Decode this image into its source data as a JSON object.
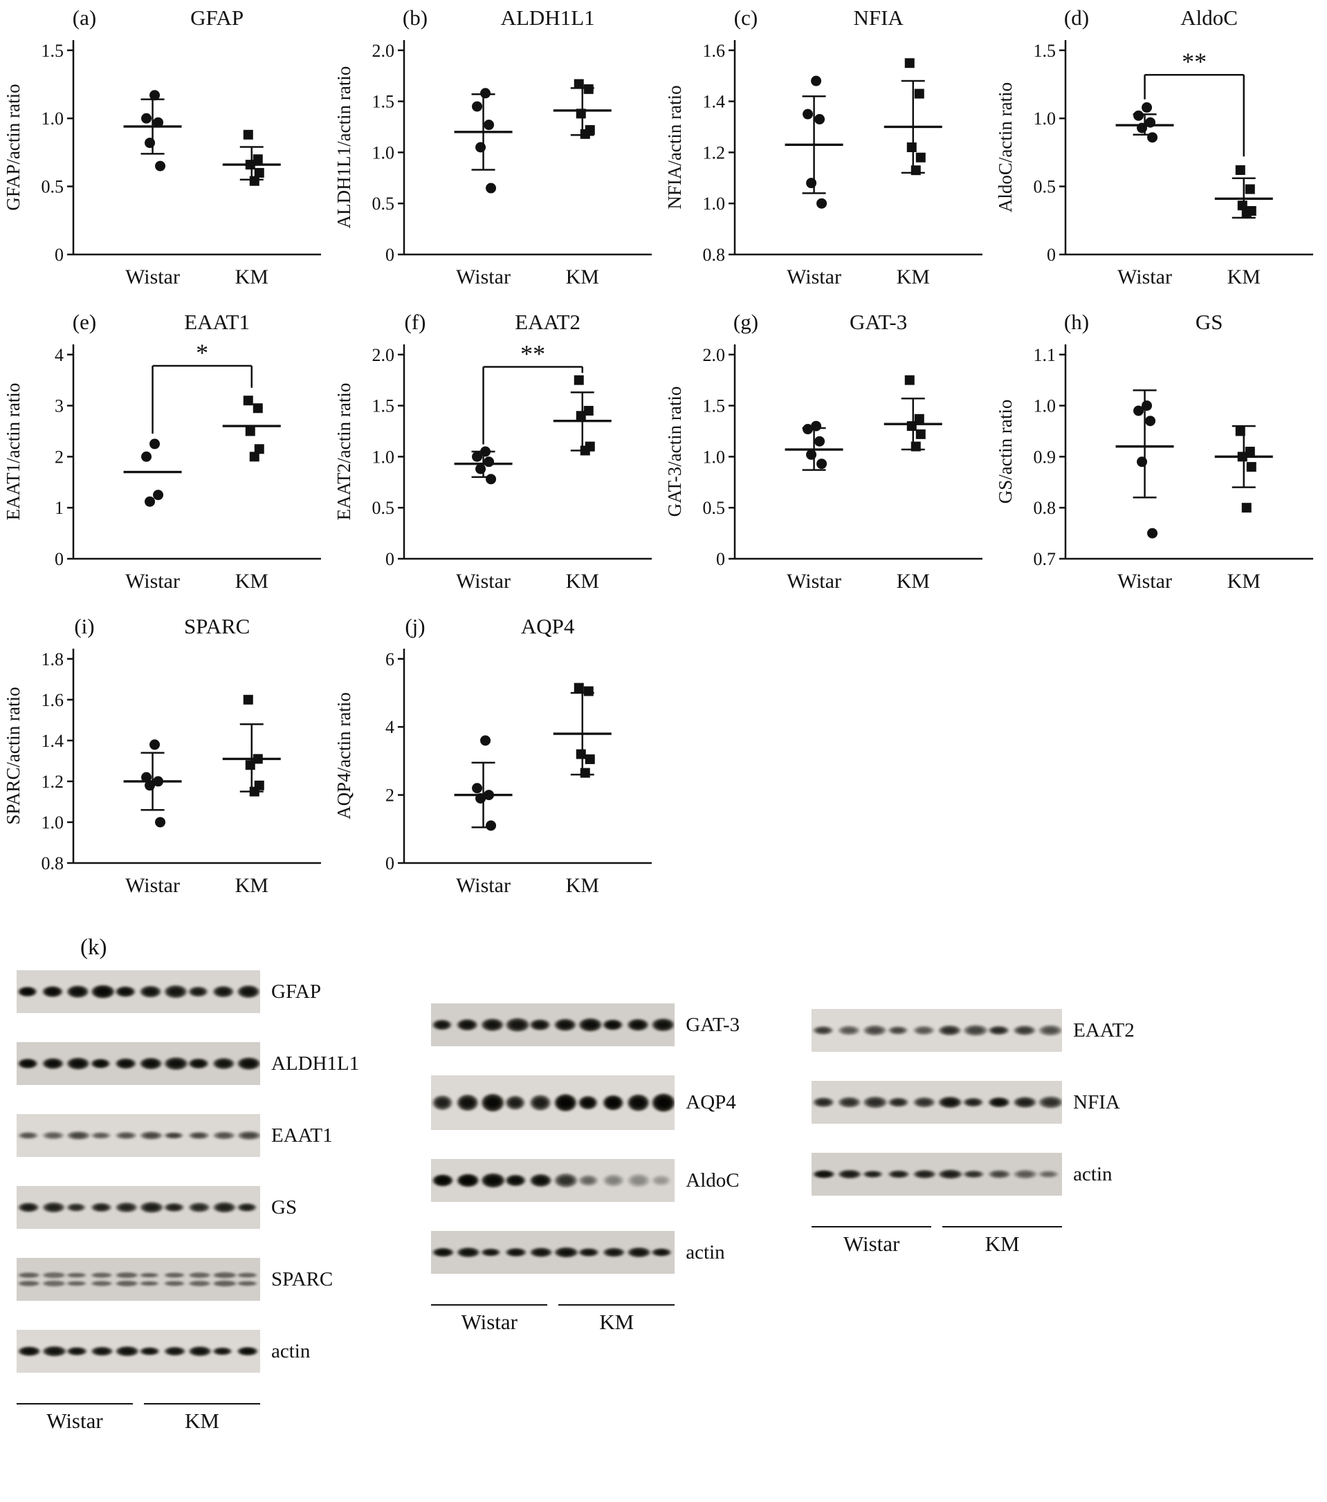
{
  "chart_data": [
    {
      "id": "a",
      "panel": "(a)",
      "title": "GFAP",
      "type": "scatter",
      "ylabel": "GFAP/actin ratio",
      "categories": [
        "Wistar",
        "KM"
      ],
      "ylim": [
        0,
        1.5
      ],
      "yticks": [
        0,
        0.5,
        1.0,
        1.5
      ],
      "ytick_labels": [
        "0",
        "0.5",
        "1.0",
        "1.5"
      ],
      "series": [
        {
          "name": "Wistar",
          "marker": "circle",
          "values": [
            1.17,
            1.0,
            0.97,
            0.82,
            0.65
          ],
          "mean": 0.94,
          "err": [
            0.74,
            1.14
          ]
        },
        {
          "name": "KM",
          "marker": "square",
          "values": [
            0.88,
            0.7,
            0.66,
            0.6,
            0.54
          ],
          "mean": 0.66,
          "err": [
            0.55,
            0.79
          ]
        }
      ],
      "significance": null
    },
    {
      "id": "b",
      "panel": "(b)",
      "title": "ALDH1L1",
      "type": "scatter",
      "ylabel": "ALDH1L1/actin ratio",
      "categories": [
        "Wistar",
        "KM"
      ],
      "ylim": [
        0,
        2.0
      ],
      "yticks": [
        0,
        0.5,
        1.0,
        1.5,
        2.0
      ],
      "ytick_labels": [
        "0",
        "0.5",
        "1.0",
        "1.5",
        "2.0"
      ],
      "series": [
        {
          "name": "Wistar",
          "marker": "circle",
          "values": [
            1.58,
            1.45,
            1.27,
            1.05,
            0.65
          ],
          "mean": 1.2,
          "err": [
            0.83,
            1.57
          ]
        },
        {
          "name": "KM",
          "marker": "square",
          "values": [
            1.67,
            1.62,
            1.38,
            1.22,
            1.18
          ],
          "mean": 1.41,
          "err": [
            1.17,
            1.63
          ]
        }
      ],
      "significance": null
    },
    {
      "id": "c",
      "panel": "(c)",
      "title": "NFIA",
      "type": "scatter",
      "ylabel": "NFIA/actin ratio",
      "categories": [
        "Wistar",
        "KM"
      ],
      "ylim": [
        0.8,
        1.6
      ],
      "yticks": [
        0.8,
        1.0,
        1.2,
        1.4,
        1.6
      ],
      "ytick_labels": [
        "0.8",
        "1.0",
        "1.2",
        "1.4",
        "1.6"
      ],
      "series": [
        {
          "name": "Wistar",
          "marker": "circle",
          "values": [
            1.48,
            1.35,
            1.33,
            1.08,
            1.0
          ],
          "mean": 1.23,
          "err": [
            1.04,
            1.42
          ]
        },
        {
          "name": "KM",
          "marker": "square",
          "values": [
            1.55,
            1.43,
            1.22,
            1.18,
            1.13
          ],
          "mean": 1.3,
          "err": [
            1.12,
            1.48
          ]
        }
      ],
      "significance": null
    },
    {
      "id": "d",
      "panel": "(d)",
      "title": "AldoC",
      "type": "scatter",
      "ylabel": "AldoC/actin ratio",
      "categories": [
        "Wistar",
        "KM"
      ],
      "ylim": [
        0,
        1.5
      ],
      "yticks": [
        0,
        0.5,
        1.0,
        1.5
      ],
      "ytick_labels": [
        "0",
        "0.5",
        "1.0",
        "1.5"
      ],
      "series": [
        {
          "name": "Wistar",
          "marker": "circle",
          "values": [
            1.08,
            1.02,
            0.97,
            0.93,
            0.86
          ],
          "mean": 0.95,
          "err": [
            0.88,
            1.03
          ]
        },
        {
          "name": "KM",
          "marker": "square",
          "values": [
            0.62,
            0.48,
            0.36,
            0.32,
            0.3
          ],
          "mean": 0.41,
          "err": [
            0.27,
            0.56
          ]
        }
      ],
      "significance": {
        "label": "**",
        "bar_y": 1.32,
        "left_drop_to": 1.14,
        "right_drop_to": 0.72
      }
    },
    {
      "id": "e",
      "panel": "(e)",
      "title": "EAAT1",
      "type": "scatter",
      "ylabel": "EAAT1/actin ratio",
      "categories": [
        "Wistar",
        "KM"
      ],
      "ylim": [
        0,
        4
      ],
      "yticks": [
        0,
        1,
        2,
        3,
        4
      ],
      "ytick_labels": [
        "0",
        "1",
        "2",
        "3",
        "4"
      ],
      "series": [
        {
          "name": "Wistar",
          "marker": "circle",
          "values": [
            2.25,
            2.0,
            1.25,
            1.12
          ],
          "mean": 1.7,
          "err": null
        },
        {
          "name": "KM",
          "marker": "square",
          "values": [
            3.1,
            2.95,
            2.5,
            2.15,
            2.0
          ],
          "mean": 2.6,
          "err": null
        }
      ],
      "significance": {
        "label": "*",
        "bar_y": 3.78,
        "left_drop_to": 2.45,
        "right_drop_to": 3.35
      }
    },
    {
      "id": "f",
      "panel": "(f)",
      "title": "EAAT2",
      "type": "scatter",
      "ylabel": "EAAT2/actin ratio",
      "categories": [
        "Wistar",
        "KM"
      ],
      "ylim": [
        0,
        2.0
      ],
      "yticks": [
        0,
        0.5,
        1.0,
        1.5,
        2.0
      ],
      "ytick_labels": [
        "0",
        "0.5",
        "1.0",
        "1.5",
        "2.0"
      ],
      "series": [
        {
          "name": "Wistar",
          "marker": "circle",
          "values": [
            1.05,
            1.0,
            0.95,
            0.88,
            0.78
          ],
          "mean": 0.93,
          "err": [
            0.8,
            1.05
          ]
        },
        {
          "name": "KM",
          "marker": "square",
          "values": [
            1.75,
            1.45,
            1.4,
            1.1,
            1.06
          ],
          "mean": 1.35,
          "err": [
            1.06,
            1.63
          ]
        }
      ],
      "significance": {
        "label": "**",
        "bar_y": 1.88,
        "left_drop_to": 1.12,
        "right_drop_to": 1.82
      }
    },
    {
      "id": "g",
      "panel": "(g)",
      "title": "GAT-3",
      "type": "scatter",
      "ylabel": "GAT-3/actin ratio",
      "categories": [
        "Wistar",
        "KM"
      ],
      "ylim": [
        0,
        2.0
      ],
      "yticks": [
        0,
        0.5,
        1.0,
        1.5,
        2.0
      ],
      "ytick_labels": [
        "0",
        "0.5",
        "1.0",
        "1.5",
        "2.0"
      ],
      "series": [
        {
          "name": "Wistar",
          "marker": "circle",
          "values": [
            1.3,
            1.27,
            1.15,
            1.02,
            0.93
          ],
          "mean": 1.07,
          "err": [
            0.87,
            1.28
          ]
        },
        {
          "name": "KM",
          "marker": "square",
          "values": [
            1.75,
            1.37,
            1.3,
            1.22,
            1.1
          ],
          "mean": 1.32,
          "err": [
            1.07,
            1.57
          ]
        }
      ],
      "significance": null
    },
    {
      "id": "h",
      "panel": "(h)",
      "title": "GS",
      "type": "scatter",
      "ylabel": "GS/actin ratio",
      "categories": [
        "Wistar",
        "KM"
      ],
      "ylim": [
        0.7,
        1.1
      ],
      "yticks": [
        0.7,
        0.8,
        0.9,
        1.0,
        1.1
      ],
      "ytick_labels": [
        "0.7",
        "0.8",
        "0.9",
        "1.0",
        "1.1"
      ],
      "series": [
        {
          "name": "Wistar",
          "marker": "circle",
          "values": [
            1.0,
            0.99,
            0.97,
            0.89,
            0.75
          ],
          "mean": 0.92,
          "err": [
            0.82,
            1.03
          ]
        },
        {
          "name": "KM",
          "marker": "square",
          "values": [
            0.95,
            0.91,
            0.9,
            0.88,
            0.8
          ],
          "mean": 0.9,
          "err": [
            0.84,
            0.96
          ]
        }
      ],
      "significance": null
    },
    {
      "id": "i",
      "panel": "(i)",
      "title": "SPARC",
      "type": "scatter",
      "ylabel": "SPARC/actin ratio",
      "categories": [
        "Wistar",
        "KM"
      ],
      "ylim": [
        0.8,
        1.8
      ],
      "yticks": [
        0.8,
        1.0,
        1.2,
        1.4,
        1.6,
        1.8
      ],
      "ytick_labels": [
        "0.8",
        "1.0",
        "1.2",
        "1.4",
        "1.6",
        "1.8"
      ],
      "series": [
        {
          "name": "Wistar",
          "marker": "circle",
          "values": [
            1.38,
            1.22,
            1.2,
            1.18,
            1.0
          ],
          "mean": 1.2,
          "err": [
            1.06,
            1.34
          ]
        },
        {
          "name": "KM",
          "marker": "square",
          "values": [
            1.6,
            1.31,
            1.28,
            1.18,
            1.15
          ],
          "mean": 1.31,
          "err": [
            1.15,
            1.48
          ]
        }
      ],
      "significance": null
    },
    {
      "id": "j",
      "panel": "(j)",
      "title": "AQP4",
      "type": "scatter",
      "ylabel": "AQP4/actin ratio",
      "categories": [
        "Wistar",
        "KM"
      ],
      "ylim": [
        0,
        6
      ],
      "yticks": [
        0,
        2,
        4,
        6
      ],
      "ytick_labels": [
        "0",
        "2",
        "4",
        "6"
      ],
      "series": [
        {
          "name": "Wistar",
          "marker": "circle",
          "values": [
            3.6,
            2.2,
            2.0,
            1.9,
            1.1
          ],
          "mean": 2.0,
          "err": [
            1.05,
            2.95
          ]
        },
        {
          "name": "KM",
          "marker": "square",
          "values": [
            5.15,
            5.05,
            3.2,
            3.05,
            2.65
          ],
          "mean": 3.8,
          "err": [
            2.6,
            5.0
          ]
        }
      ],
      "significance": null
    }
  ],
  "blots": {
    "panel_label": "(k)",
    "group_xlabels": [
      "Wistar",
      "KM"
    ],
    "groups": [
      {
        "strips": [
          {
            "label": "GFAP",
            "band_h": 16,
            "intensities": [
              0.92,
              0.88,
              0.85,
              0.9,
              0.86,
              0.8,
              0.78,
              0.75,
              0.78,
              0.82
            ]
          },
          {
            "label": "ALDH1L1",
            "band_h": 15,
            "intensities": [
              0.9,
              0.85,
              0.85,
              0.88,
              0.85,
              0.85,
              0.82,
              0.85,
              0.8,
              0.85
            ]
          },
          {
            "label": "EAAT1",
            "band_h": 10,
            "intensities": [
              0.45,
              0.4,
              0.5,
              0.42,
              0.45,
              0.5,
              0.55,
              0.5,
              0.45,
              0.5
            ]
          },
          {
            "label": "GS",
            "band_h": 13,
            "intensities": [
              0.75,
              0.7,
              0.65,
              0.7,
              0.68,
              0.72,
              0.7,
              0.65,
              0.7,
              0.72
            ]
          },
          {
            "label": "SPARC",
            "band_h": 7,
            "double": true,
            "intensities": [
              0.6,
              0.55,
              0.6,
              0.58,
              0.6,
              0.62,
              0.6,
              0.58,
              0.6,
              0.6
            ]
          },
          {
            "label": "actin",
            "band_h": 12,
            "intensities": [
              0.85,
              0.8,
              0.82,
              0.8,
              0.82,
              0.82,
              0.8,
              0.82,
              0.8,
              0.88
            ]
          }
        ]
      },
      {
        "strips": [
          {
            "label": "GAT-3",
            "band_h": 16,
            "intensities": [
              0.8,
              0.82,
              0.8,
              0.78,
              0.8,
              0.82,
              0.85,
              0.88,
              0.85,
              0.82
            ]
          },
          {
            "label": "AQP4",
            "band_h": 22,
            "intensities": [
              0.7,
              0.82,
              0.9,
              0.72,
              0.72,
              0.95,
              0.9,
              0.95,
              0.9,
              0.95
            ]
          },
          {
            "label": "AldoC",
            "band_h": 17,
            "intensities": [
              0.95,
              0.95,
              0.9,
              0.88,
              0.85,
              0.6,
              0.35,
              0.25,
              0.22,
              0.18
            ]
          },
          {
            "label": "actin",
            "band_h": 12,
            "intensities": [
              0.85,
              0.82,
              0.8,
              0.82,
              0.8,
              0.82,
              0.8,
              0.78,
              0.8,
              0.82
            ]
          }
        ]
      },
      {
        "strips": [
          {
            "label": "EAAT2",
            "band_h": 13,
            "intensities": [
              0.55,
              0.42,
              0.48,
              0.5,
              0.42,
              0.62,
              0.5,
              0.65,
              0.55,
              0.45
            ]
          },
          {
            "label": "NFIA",
            "band_h": 14,
            "intensities": [
              0.65,
              0.6,
              0.62,
              0.65,
              0.6,
              0.8,
              0.7,
              0.85,
              0.7,
              0.6
            ]
          },
          {
            "label": "actin",
            "band_h": 11,
            "intensities": [
              0.85,
              0.75,
              0.72,
              0.72,
              0.7,
              0.72,
              0.62,
              0.5,
              0.4,
              0.35
            ]
          }
        ]
      }
    ]
  }
}
